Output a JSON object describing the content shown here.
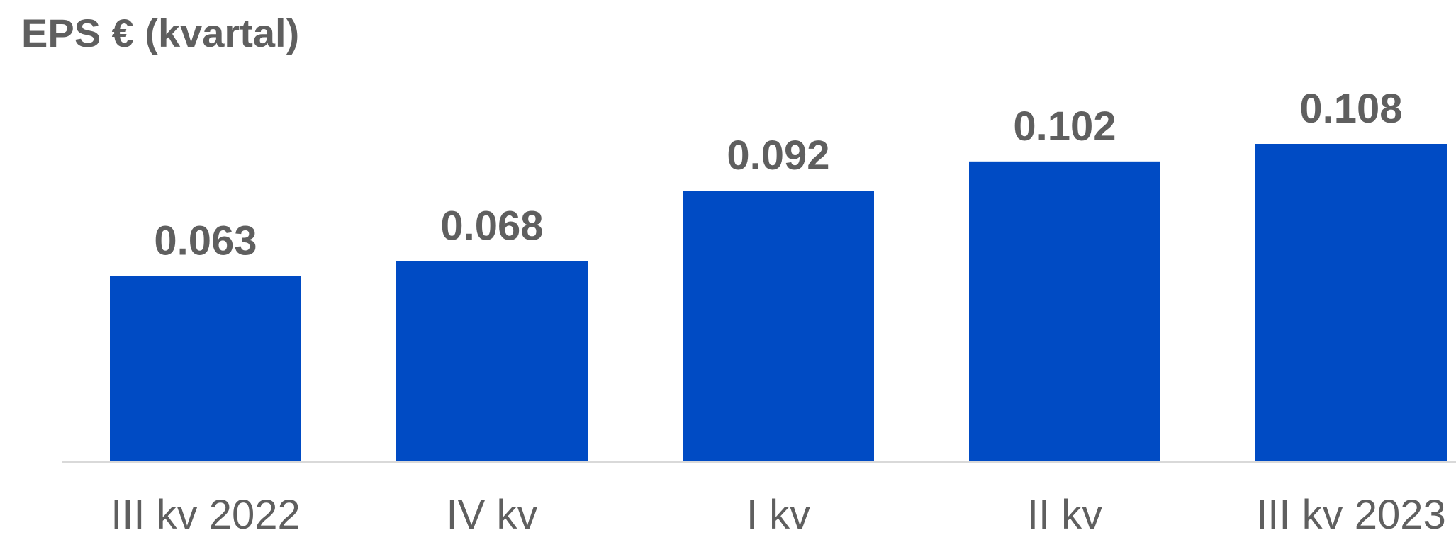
{
  "chart_data": {
    "type": "bar",
    "title": "EPS € (kvartal)",
    "xlabel": "",
    "ylabel": "",
    "categories": [
      "III kv 2022",
      "IV kv",
      "I kv",
      "II kv",
      "III kv 2023"
    ],
    "values": [
      0.063,
      0.068,
      0.092,
      0.102,
      0.108
    ],
    "data_labels": [
      "0.063",
      "0.068",
      "0.092",
      "0.102",
      "0.108"
    ],
    "ylim": [
      0,
      0.108
    ],
    "grid": false,
    "legend": "none",
    "colors": {
      "bar": "#004BC4",
      "text": "#5F5F5F",
      "axis": "#D9D9D9"
    }
  }
}
